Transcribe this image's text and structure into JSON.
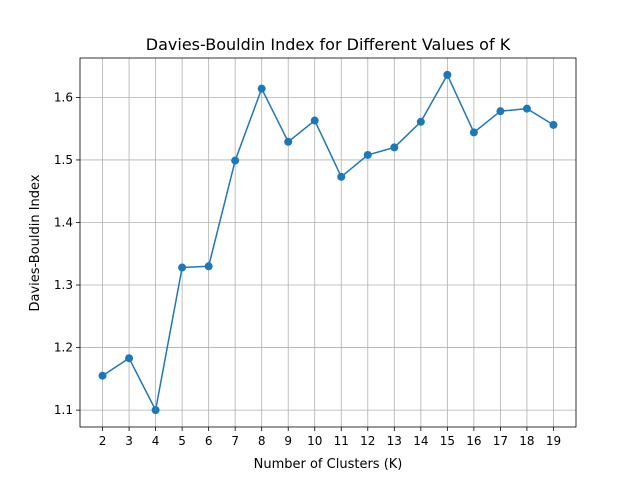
{
  "chart_data": {
    "type": "line",
    "title": "Davies-Bouldin Index for Different Values of K",
    "xlabel": "Number of Clusters (K)",
    "ylabel": "Davies-Bouldin Index",
    "x": [
      2,
      3,
      4,
      5,
      6,
      7,
      8,
      9,
      10,
      11,
      12,
      13,
      14,
      15,
      16,
      17,
      18,
      19
    ],
    "series": [
      {
        "values": [
          1.155,
          1.183,
          1.1,
          1.328,
          1.33,
          1.499,
          1.614,
          1.529,
          1.563,
          1.473,
          1.508,
          1.52,
          1.561,
          1.636,
          1.544,
          1.578,
          1.582,
          1.556
        ]
      }
    ],
    "xticks": [
      "2",
      "3",
      "4",
      "5",
      "6",
      "7",
      "8",
      "9",
      "10",
      "11",
      "12",
      "13",
      "14",
      "15",
      "16",
      "17",
      "18",
      "19"
    ],
    "yticks": [
      "1.1",
      "1.2",
      "1.3",
      "1.4",
      "1.5",
      "1.6"
    ],
    "xlim": [
      1.15,
      19.85
    ],
    "ylim": [
      1.073,
      1.663
    ],
    "grid": true,
    "line_color": "#1f77b4",
    "marker": "circle"
  }
}
